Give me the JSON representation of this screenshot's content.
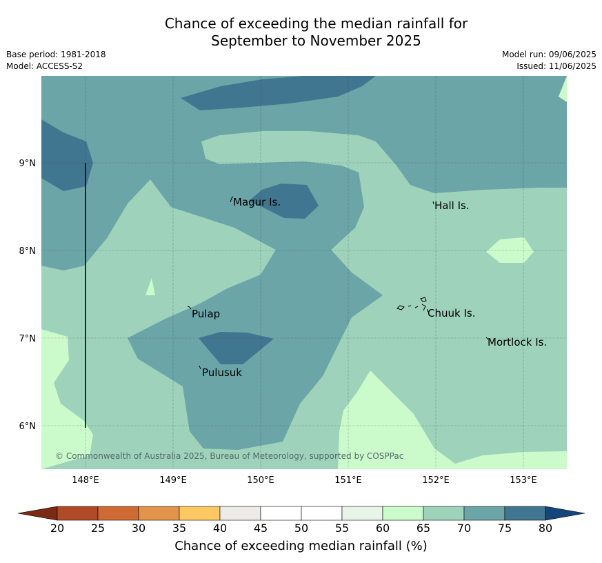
{
  "title_line1": "Chance of exceeding the median rainfall for",
  "title_line2": "September to November 2025",
  "meta": {
    "base_period": "Base period: 1981-2018",
    "model": "Model: ACCESS-S2",
    "model_run": "Model run: 09/06/2025",
    "issued": "Issued: 11/06/2025"
  },
  "copyright": "© Commonwealth of Australia 2025, Bureau of Meteorology, supported by COSPPac",
  "places": [
    {
      "name": "Magur Is."
    },
    {
      "name": "Hall Is."
    },
    {
      "name": "Pulap"
    },
    {
      "name": "Chuuk Is."
    },
    {
      "name": "Mortlock Is."
    },
    {
      "name": "Pulusuk"
    }
  ],
  "axes": {
    "lon_ticks": [
      "148°E",
      "149°E",
      "150°E",
      "151°E",
      "152°E",
      "153°E"
    ],
    "lat_ticks": [
      "9°N",
      "8°N",
      "7°N",
      "6°N"
    ]
  },
  "colorbar": {
    "label": "Chance of exceeding median rainfall (%)",
    "ticks": [
      "20",
      "25",
      "30",
      "35",
      "40",
      "45",
      "50",
      "55",
      "60",
      "65",
      "70",
      "75",
      "80"
    ],
    "colors": [
      "#7a2a14",
      "#b04a26",
      "#cf6a34",
      "#e1944a",
      "#fcc863",
      "#ecebe8",
      "#ffffff",
      "#ffffff",
      "#e9f4e9",
      "#cbfbca",
      "#9ed2bb",
      "#6ba5a8",
      "#40768f",
      "#15457a"
    ]
  }
}
